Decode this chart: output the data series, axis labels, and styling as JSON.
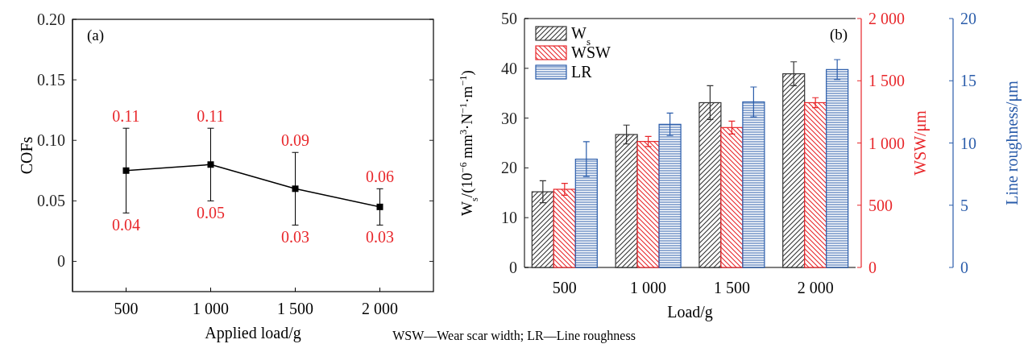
{
  "chart_data": [
    {
      "type": "line",
      "categories": [
        "500",
        "1 000",
        "1 500",
        "2 000"
      ],
      "xlabel": "Applied load/g",
      "ylabel": "COFs",
      "ylim": [
        -0.025,
        0.2
      ],
      "yticks": [
        0,
        0.05,
        {
          "value": 0.1,
          "label": "0.10"
        },
        0.15,
        {
          "value": 0.2,
          "label": "0.20"
        }
      ],
      "marker": "square",
      "line_style": "solid",
      "series": [
        {
          "color": "#000000",
          "values": [
            0.075,
            0.08,
            0.06,
            0.045
          ],
          "errors": [
            [
              0.04,
              0.11
            ],
            [
              0.05,
              0.11
            ],
            [
              0.03,
              0.09
            ],
            [
              0.03,
              0.06
            ]
          ]
        }
      ],
      "annotations": [
        "(a)",
        {
          "text": "0.11",
          "x": "500",
          "y": 0.11
        },
        {
          "text": "0.04",
          "x": "500",
          "y": 0.04
        },
        {
          "text": "0.11",
          "x": "1 000",
          "y": 0.11
        },
        {
          "text": "0.05",
          "x": "1 000",
          "y": 0.05
        },
        {
          "text": "0.09",
          "x": "1 500",
          "y": 0.09
        },
        {
          "text": "0.03",
          "x": "1 500",
          "y": 0.03
        },
        {
          "text": "0.06",
          "x": "2 000",
          "y": 0.06
        },
        {
          "text": "0.03",
          "x": "2 000",
          "y": 0.03
        }
      ]
    },
    {
      "type": "bar",
      "categories": [
        "500",
        "1 000",
        "1 500",
        "2 000"
      ],
      "xlabel": "Load/g",
      "ylabel": "W$_{s}$/(10$^{−6}$ mm$^{3}$·N$^{−1}$·m$^{−1}$)",
      "y2label": "WSW/μm",
      "y3label": "Line roughness/μm",
      "ylim": [
        0,
        50
      ],
      "yticks": [
        0,
        10,
        20,
        30,
        40,
        50
      ],
      "y2lim": [
        0,
        2000
      ],
      "y2ticks": [
        0,
        500,
        {
          "value": 1000,
          "label": "1 000"
        },
        {
          "value": 1500,
          "label": "1 500"
        },
        {
          "value": 2000,
          "label": "2 000"
        }
      ],
      "y3lim": [
        0,
        20
      ],
      "y3ticks": [
        0,
        5,
        10,
        15,
        20
      ],
      "legend": "top left",
      "series": [
        {
          "name": "W$_{s}$",
          "color": "#333333",
          "values": [
            15.2,
            26.7,
            33.1,
            38.9
          ],
          "errors": [
            2.2,
            1.9,
            3.4,
            2.4
          ]
        },
        {
          "name": "WSW",
          "color": "#e8262a",
          "axis": "y2",
          "values": [
            628,
            1012,
            1124,
            1324
          ],
          "errors": [
            48,
            40,
            52,
            40
          ]
        },
        {
          "name": "LR",
          "color": "#2a5caa",
          "axis": "y3",
          "values": [
            8.7,
            11.5,
            13.3,
            15.9
          ],
          "errors": [
            1.4,
            0.9,
            1.2,
            0.8
          ]
        }
      ],
      "annotations": [
        "(b)",
        "WSW—Wear scar width; LR—Line roughness"
      ]
    }
  ]
}
